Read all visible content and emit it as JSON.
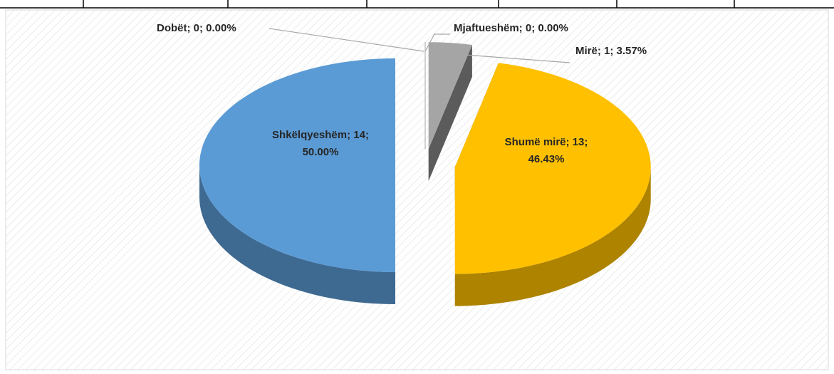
{
  "chart_data": {
    "type": "pie",
    "categories": [
      "Dobët",
      "Mjaftueshëm",
      "Mirë",
      "Shumë mirë",
      "Shkëlqyeshëm"
    ],
    "values": [
      0,
      0,
      1,
      13,
      14
    ],
    "value_labels": [
      "Dobët; 0; 0.00%",
      "Mjaftueshëm; 0; 0.00%",
      "Mirë; 1; 3.57%",
      "Shumë mirë; 13;\n46.43%",
      "Shkëlqyeshëm; 14;\n50.00%"
    ],
    "colors": [
      "#4472c4",
      "#ed7d31",
      "#a5a5a5",
      "#ffc000",
      "#5b9bd5"
    ],
    "three_d": true,
    "exploded": true
  }
}
